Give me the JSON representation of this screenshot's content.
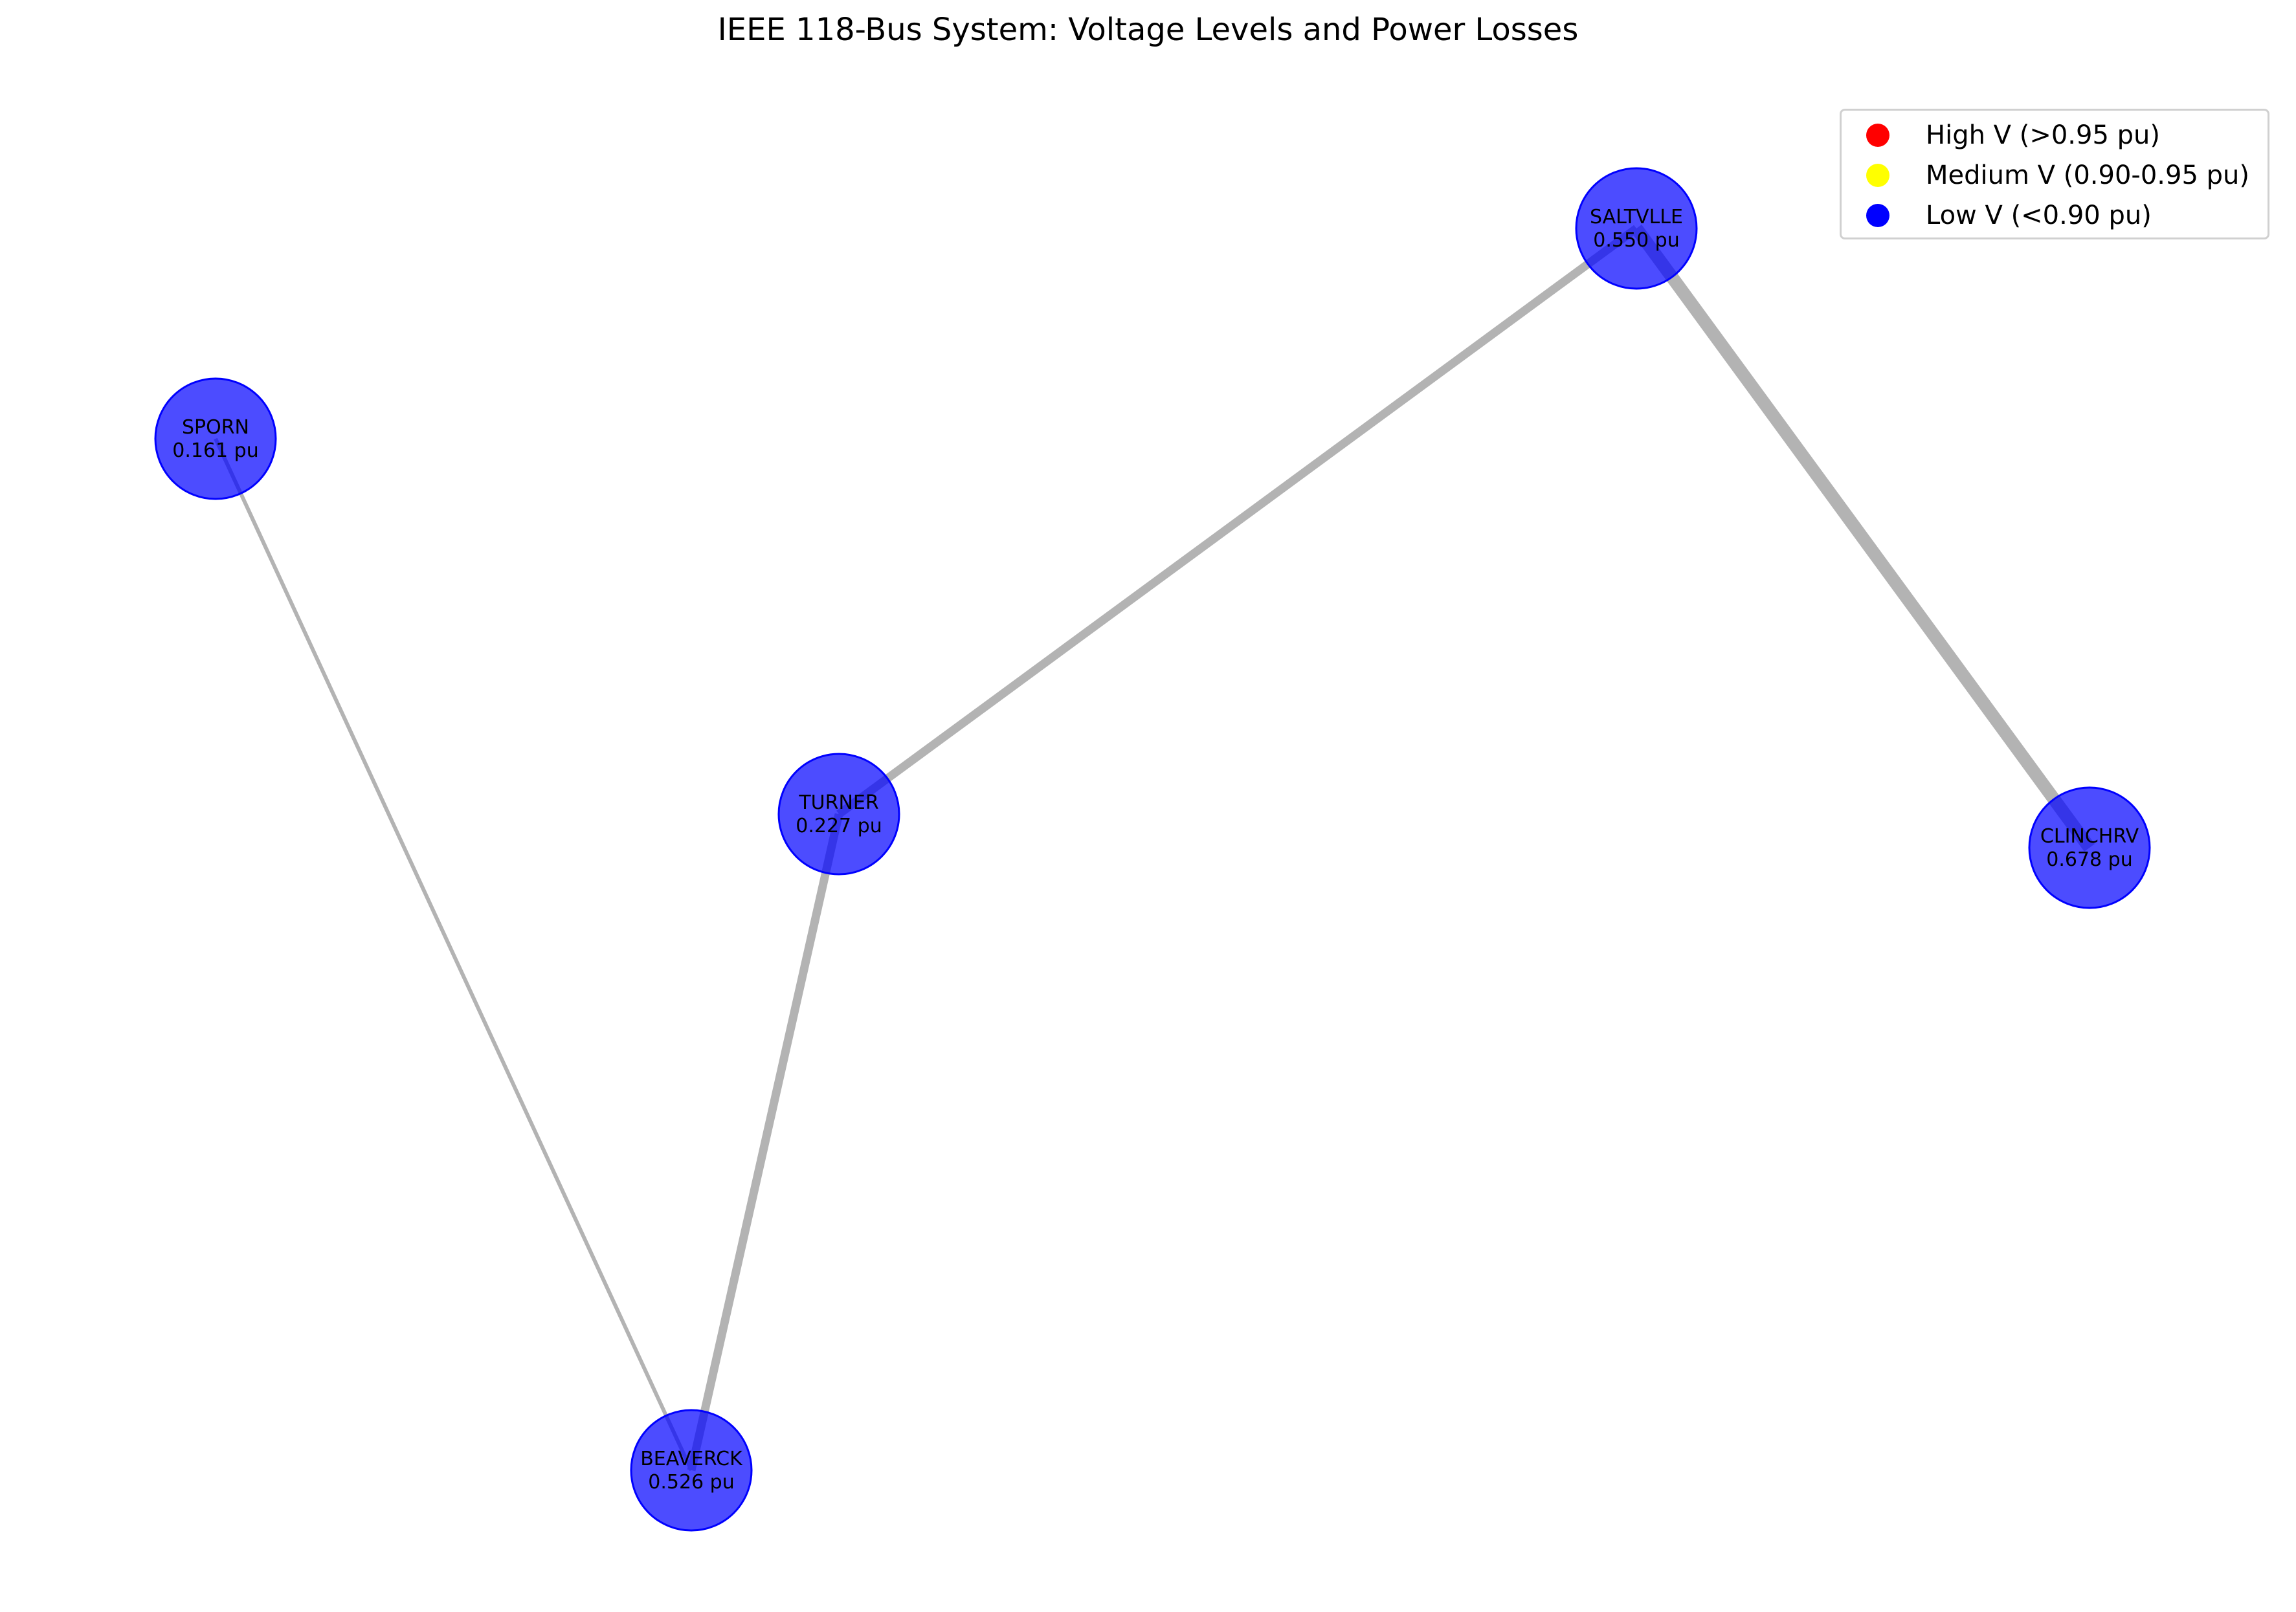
{
  "title": "IEEE 118-Bus System: Voltage Levels and Power Losses",
  "colors": {
    "high": "#ff0000",
    "medium": "#ffff00",
    "low": "#0000ff",
    "edge": "#b3b3b3"
  },
  "legend": [
    {
      "label": "High V (>0.95 pu)",
      "color": "#ff0000"
    },
    {
      "label": "Medium V (0.90-0.95 pu)",
      "color": "#ffff00"
    },
    {
      "label": "Low V (<0.90 pu)",
      "color": "#0000ff"
    }
  ],
  "nodes": [
    {
      "id": "SPORN",
      "name": "SPORN",
      "voltage_label": "0.161 pu",
      "voltage": 0.161
    },
    {
      "id": "TURNER",
      "name": "TURNER",
      "voltage_label": "0.227 pu",
      "voltage": 0.227
    },
    {
      "id": "SALTVLLE",
      "name": "SALTVLLE",
      "voltage_label": "0.550 pu",
      "voltage": 0.55
    },
    {
      "id": "CLINCHRV",
      "name": "CLINCHRV",
      "voltage_label": "0.678 pu",
      "voltage": 0.678
    },
    {
      "id": "BEAVERCK",
      "name": "BEAVERCK",
      "voltage_label": "0.526 pu",
      "voltage": 0.526
    }
  ],
  "edges": [
    {
      "from": "SPORN",
      "to": "BEAVERCK",
      "loss_level": "low"
    },
    {
      "from": "TURNER",
      "to": "BEAVERCK",
      "loss_level": "medium"
    },
    {
      "from": "TURNER",
      "to": "SALTVLLE",
      "loss_level": "medium"
    },
    {
      "from": "SALTVLLE",
      "to": "CLINCHRV",
      "loss_level": "high"
    }
  ]
}
